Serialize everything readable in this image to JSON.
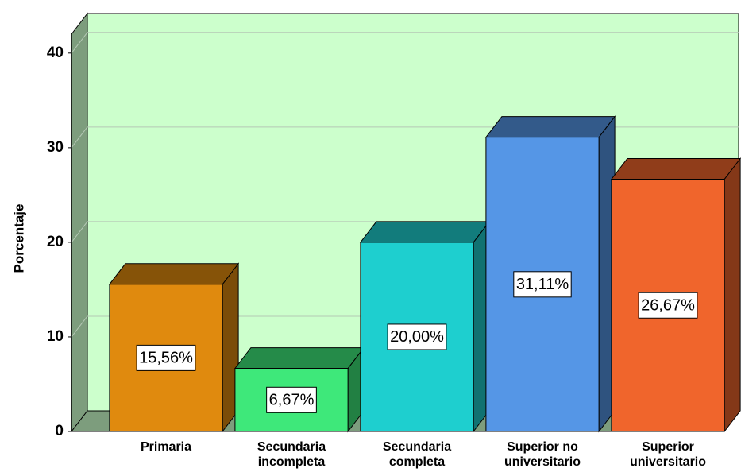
{
  "chart_data": {
    "type": "bar3d",
    "y_label": "Porcentaje",
    "categories": [
      [
        "Primaria"
      ],
      [
        "Secundaria",
        "incompleta"
      ],
      [
        "Secundaria",
        "completa"
      ],
      [
        "Superior no",
        "universitario"
      ],
      [
        "Superior",
        "universitario"
      ]
    ],
    "values": [
      15.56,
      6.67,
      20.0,
      31.11,
      26.67
    ],
    "value_labels": [
      "15,56%",
      "6,67%",
      "20,00%",
      "31,11%",
      "26,67%"
    ],
    "colors": [
      "#e08a0e",
      "#3ee87a",
      "#1ecfcf",
      "#5596e6",
      "#f0652c"
    ],
    "ylim": [
      0,
      42
    ],
    "yticks": [
      0,
      10,
      20,
      30,
      40
    ],
    "grid": true
  }
}
